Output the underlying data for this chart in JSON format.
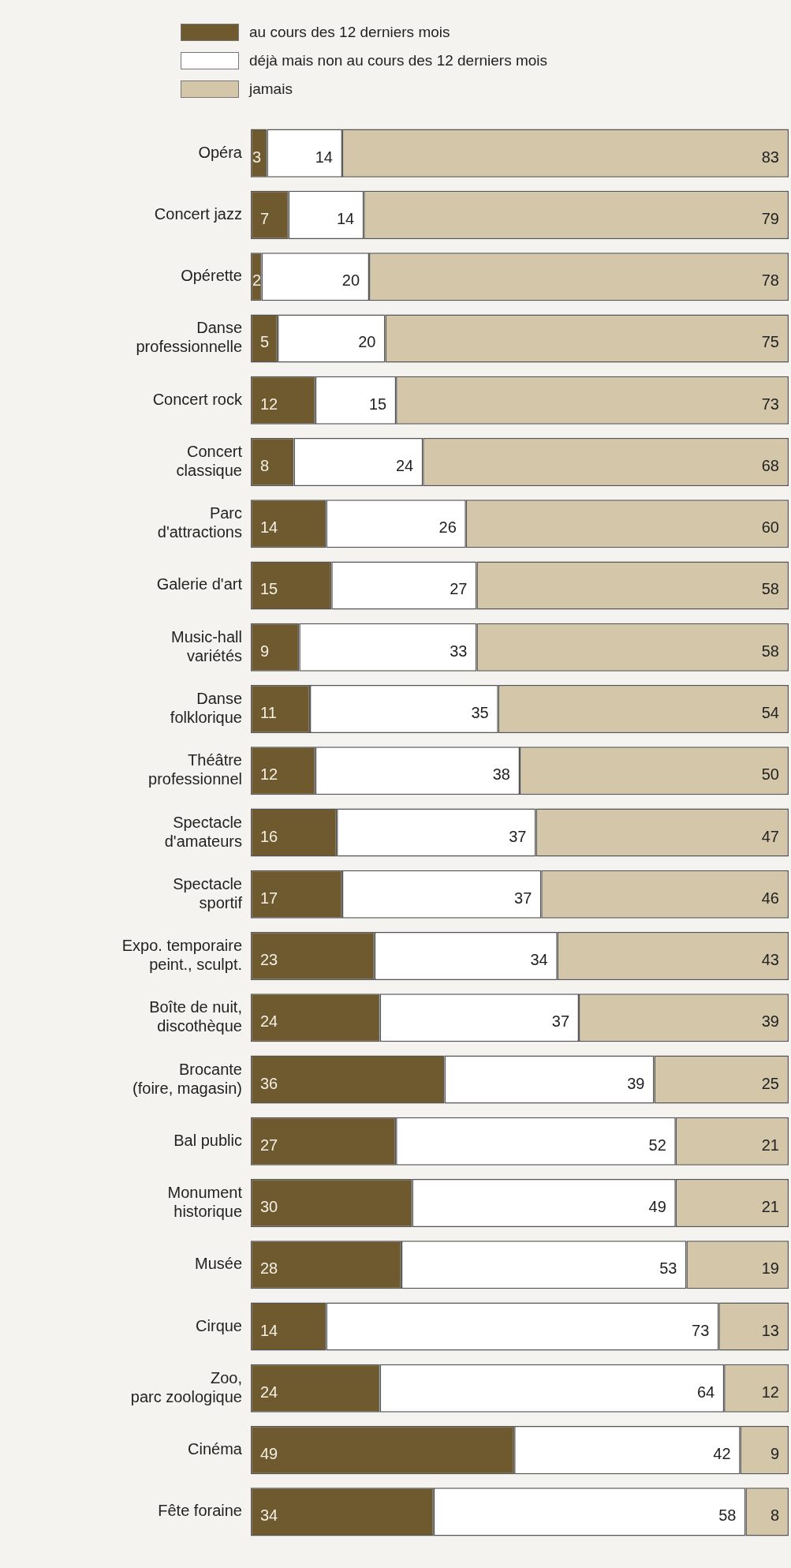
{
  "chart_data": {
    "type": "bar",
    "orientation": "horizontal",
    "stacked": true,
    "data_labels": true,
    "legend": "top left",
    "tick_labels": "y",
    "xlim": [
      0,
      100
    ],
    "categories": [
      "Opéra",
      "Concert jazz",
      "Opérette",
      "Danse\nprofessionnelle",
      "Concert rock",
      "Concert\nclassique",
      "Parc\nd'attractions",
      "Galerie d'art",
      "Music-hall\nvariétés",
      "Danse\nfolklorique",
      "Théâtre\nprofessionnel",
      "Spectacle\nd'amateurs",
      "Spectacle\nsportif",
      "Expo. temporaire\npeint., sculpt.",
      "Boîte de nuit,\ndiscothèque",
      "Brocante\n(foire, magasin)",
      "Bal public",
      "Monument\nhistorique",
      "Musée",
      "Cirque",
      "Zoo,\nparc zoologique",
      "Cinéma",
      "Fête foraine"
    ],
    "series": [
      {
        "name": "au cours des 12 derniers mois",
        "color": "#6e5a2e",
        "values": [
          3,
          7,
          2,
          5,
          12,
          8,
          14,
          15,
          9,
          11,
          12,
          16,
          17,
          23,
          24,
          36,
          27,
          30,
          28,
          14,
          24,
          49,
          34
        ]
      },
      {
        "name": "déjà mais non au cours des 12 derniers mois",
        "color": "#ffffff",
        "values": [
          14,
          14,
          20,
          20,
          15,
          24,
          26,
          27,
          33,
          35,
          38,
          37,
          37,
          34,
          37,
          39,
          52,
          49,
          53,
          73,
          64,
          42,
          58
        ]
      },
      {
        "name": "jamais",
        "color": "#d3c6a9",
        "values": [
          83,
          79,
          78,
          75,
          73,
          68,
          60,
          58,
          58,
          54,
          50,
          47,
          46,
          43,
          39,
          25,
          21,
          21,
          19,
          13,
          12,
          9,
          8
        ]
      }
    ]
  }
}
